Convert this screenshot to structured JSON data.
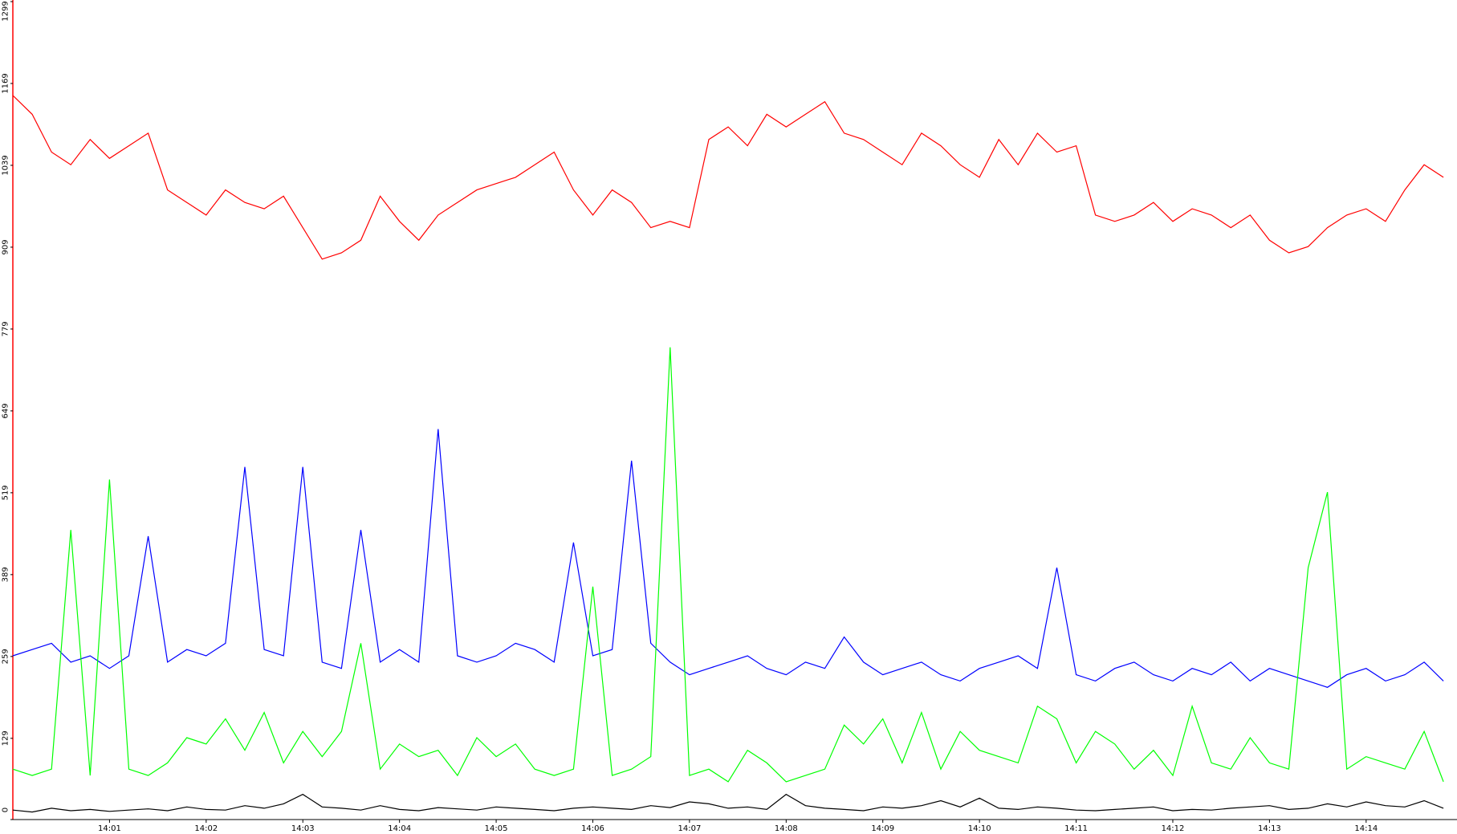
{
  "chart_data": {
    "type": "line",
    "x": [
      0,
      0.2,
      0.4,
      0.6,
      0.8,
      1,
      1.2,
      1.4,
      1.6,
      1.8,
      2,
      2.2,
      2.4,
      2.6,
      2.8,
      3,
      3.2,
      3.4,
      3.6,
      3.8,
      4,
      4.2,
      4.4,
      4.6,
      4.8,
      5,
      5.2,
      5.4,
      5.6,
      5.8,
      6,
      6.2,
      6.4,
      6.6,
      6.8,
      7,
      7.2,
      7.4,
      7.6,
      7.8,
      8,
      8.2,
      8.4,
      8.6,
      8.8,
      9,
      9.2,
      9.4,
      9.6,
      9.8,
      10,
      10.2,
      10.4,
      10.6,
      10.8,
      11,
      11.2,
      11.4,
      11.6,
      11.8,
      12,
      12.2,
      12.4,
      12.6,
      12.8,
      13,
      13.2,
      13.4,
      13.6,
      13.8,
      14,
      14.2,
      14.4,
      14.6,
      14.8
    ],
    "xlim": [
      0,
      14.94
    ],
    "xticks": [
      {
        "value": 1,
        "label": "14:01"
      },
      {
        "value": 2,
        "label": "14:02"
      },
      {
        "value": 3,
        "label": "14:03"
      },
      {
        "value": 4,
        "label": "14:04"
      },
      {
        "value": 5,
        "label": "14:05"
      },
      {
        "value": 6,
        "label": "14:06"
      },
      {
        "value": 7,
        "label": "14:07"
      },
      {
        "value": 8,
        "label": "14:08"
      },
      {
        "value": 9,
        "label": "14:09"
      },
      {
        "value": 10,
        "label": "14:10"
      },
      {
        "value": 11,
        "label": "14:11"
      },
      {
        "value": 12,
        "label": "14:12"
      },
      {
        "value": 13,
        "label": "14:13"
      },
      {
        "value": 14,
        "label": "14:14"
      }
    ],
    "ylim": [
      0,
      1299
    ],
    "yticks": [
      0,
      129,
      259,
      389,
      519,
      649,
      779,
      909,
      1039,
      1169,
      1299
    ],
    "series": [
      {
        "color": "#ff0000",
        "values": [
          1150,
          1120,
          1060,
          1040,
          1080,
          1050,
          1070,
          1090,
          1000,
          980,
          960,
          1000,
          980,
          970,
          990,
          940,
          890,
          900,
          920,
          990,
          950,
          920,
          960,
          980,
          1000,
          1010,
          1020,
          1040,
          1060,
          1000,
          960,
          1000,
          980,
          940,
          950,
          940,
          1080,
          1100,
          1070,
          1120,
          1100,
          1120,
          1140,
          1090,
          1080,
          1060,
          1040,
          1090,
          1070,
          1040,
          1020,
          1080,
          1040,
          1090,
          1060,
          1070,
          960,
          950,
          960,
          980,
          950,
          970,
          960,
          940,
          960,
          920,
          900,
          910,
          940,
          960,
          970,
          950,
          1000,
          1040,
          1020
        ]
      },
      {
        "color": "#0000ff",
        "values": [
          260,
          270,
          280,
          250,
          260,
          240,
          260,
          450,
          250,
          270,
          260,
          280,
          560,
          270,
          260,
          560,
          250,
          240,
          460,
          250,
          270,
          250,
          620,
          260,
          250,
          260,
          280,
          270,
          250,
          440,
          260,
          270,
          570,
          280,
          250,
          230,
          240,
          250,
          260,
          240,
          230,
          250,
          240,
          290,
          250,
          230,
          240,
          250,
          230,
          220,
          240,
          250,
          260,
          240,
          400,
          230,
          220,
          240,
          250,
          230,
          220,
          240,
          230,
          250,
          220,
          240,
          230,
          220,
          210,
          230,
          240,
          220,
          230,
          250,
          220
        ]
      },
      {
        "color": "#00ff00",
        "values": [
          80,
          70,
          80,
          460,
          70,
          540,
          80,
          70,
          90,
          130,
          120,
          160,
          110,
          170,
          90,
          140,
          100,
          140,
          280,
          80,
          120,
          100,
          110,
          70,
          130,
          100,
          120,
          80,
          70,
          80,
          370,
          70,
          80,
          100,
          750,
          70,
          80,
          60,
          110,
          90,
          60,
          70,
          80,
          150,
          120,
          160,
          90,
          170,
          80,
          140,
          110,
          100,
          90,
          180,
          160,
          90,
          140,
          120,
          80,
          110,
          70,
          180,
          90,
          80,
          130,
          90,
          80,
          400,
          520,
          80,
          100,
          90,
          80,
          140,
          60
        ]
      },
      {
        "color": "#000000",
        "values": [
          15,
          12,
          18,
          14,
          16,
          13,
          15,
          17,
          14,
          20,
          16,
          15,
          22,
          18,
          25,
          40,
          20,
          18,
          15,
          22,
          16,
          14,
          19,
          17,
          15,
          20,
          18,
          16,
          14,
          18,
          20,
          18,
          16,
          22,
          19,
          28,
          25,
          18,
          20,
          16,
          40,
          22,
          18,
          16,
          14,
          20,
          18,
          22,
          30,
          20,
          34,
          18,
          16,
          20,
          18,
          15,
          14,
          16,
          18,
          20,
          14,
          16,
          15,
          18,
          20,
          22,
          16,
          18,
          25,
          20,
          28,
          22,
          20,
          30,
          18
        ]
      }
    ]
  }
}
